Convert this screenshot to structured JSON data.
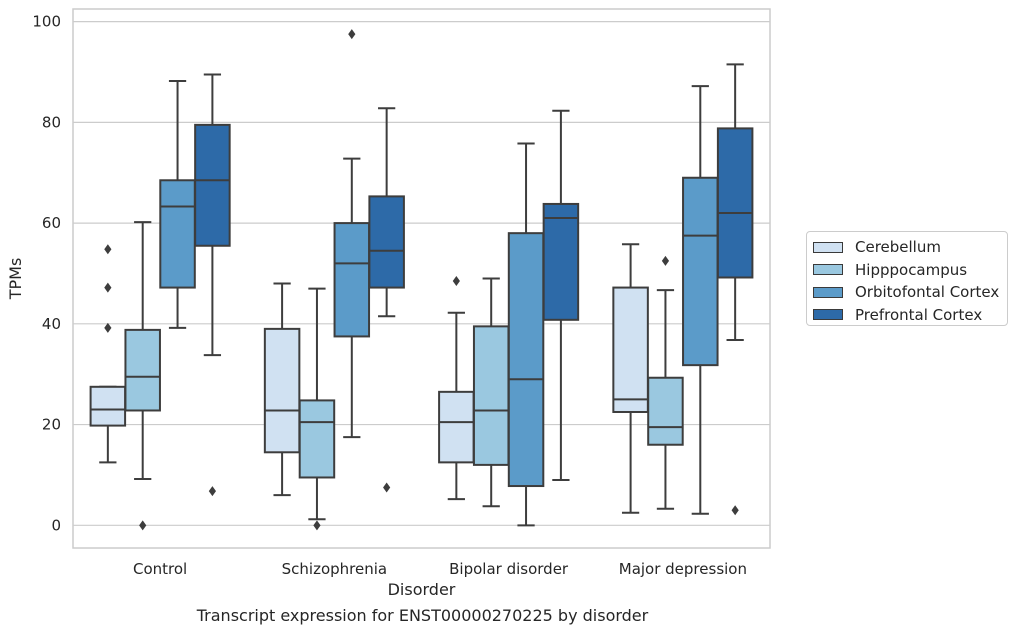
{
  "chart_data": {
    "type": "box",
    "title": "",
    "caption": "Transcript expression for ENST00000270225 by disorder",
    "xlabel": "Disorder",
    "ylabel": "TPMs",
    "ylim": [
      -4.5,
      102.5
    ],
    "yticks": [
      "0",
      "20",
      "40",
      "60",
      "80",
      "100"
    ],
    "grid": true,
    "legend_position": "right",
    "categories": [
      "Control",
      "Schizophrenia",
      "Bipolar disorder",
      "Major depression"
    ],
    "series": [
      {
        "name": "Cerebellum",
        "color": "#d0e1f2",
        "boxes": [
          {
            "whislo": 12.5,
            "q1": 19.8,
            "med": 23.0,
            "q3": 27.5,
            "whishi": 27.5,
            "fliers": [
              39.2,
              47.2,
              54.8
            ]
          },
          {
            "whislo": 6.0,
            "q1": 14.5,
            "med": 22.8,
            "q3": 39.0,
            "whishi": 48.0,
            "fliers": []
          },
          {
            "whislo": 5.2,
            "q1": 12.5,
            "med": 20.5,
            "q3": 26.5,
            "whishi": 42.2,
            "fliers": [
              48.5
            ]
          },
          {
            "whislo": 2.5,
            "q1": 22.5,
            "med": 25.0,
            "q3": 47.2,
            "whishi": 55.8,
            "fliers": []
          }
        ]
      },
      {
        "name": "Hipppocampus",
        "color": "#9ac8e0",
        "boxes": [
          {
            "whislo": 9.2,
            "q1": 22.8,
            "med": 29.5,
            "q3": 38.8,
            "whishi": 60.2,
            "fliers": [
              0.0
            ]
          },
          {
            "whislo": 1.2,
            "q1": 9.5,
            "med": 20.5,
            "q3": 24.8,
            "whishi": 47.0,
            "fliers": [
              0.0
            ]
          },
          {
            "whislo": 3.8,
            "q1": 12.0,
            "med": 22.8,
            "q3": 39.5,
            "whishi": 49.0,
            "fliers": []
          },
          {
            "whislo": 3.3,
            "q1": 16.0,
            "med": 19.5,
            "q3": 29.3,
            "whishi": 46.7,
            "fliers": [
              52.5
            ]
          }
        ]
      },
      {
        "name": "Orbitofontal Cortex",
        "color": "#5b9bc9",
        "boxes": [
          {
            "whislo": 39.2,
            "q1": 47.2,
            "med": 63.3,
            "q3": 68.5,
            "whishi": 88.2,
            "fliers": []
          },
          {
            "whislo": 17.5,
            "q1": 37.5,
            "med": 52.0,
            "q3": 60.0,
            "whishi": 72.8,
            "fliers": [
              97.5
            ]
          },
          {
            "whislo": 0.0,
            "q1": 7.8,
            "med": 29.0,
            "q3": 58.0,
            "whishi": 75.8,
            "fliers": []
          },
          {
            "whislo": 2.3,
            "q1": 31.8,
            "med": 57.5,
            "q3": 69.0,
            "whishi": 87.2,
            "fliers": []
          }
        ]
      },
      {
        "name": "Prefrontal Cortex",
        "color": "#2d6aa8",
        "boxes": [
          {
            "whislo": 33.8,
            "q1": 55.5,
            "med": 68.5,
            "q3": 79.5,
            "whishi": 89.5,
            "fliers": [
              6.8
            ]
          },
          {
            "whislo": 41.5,
            "q1": 47.2,
            "med": 54.5,
            "q3": 65.3,
            "whishi": 82.8,
            "fliers": [
              7.5
            ]
          },
          {
            "whislo": 9.0,
            "q1": 40.8,
            "med": 61.0,
            "q3": 63.8,
            "whishi": 82.3,
            "fliers": []
          },
          {
            "whislo": 36.8,
            "q1": 49.2,
            "med": 62.0,
            "q3": 78.8,
            "whishi": 91.5,
            "fliers": [
              3.0
            ]
          }
        ]
      }
    ]
  }
}
